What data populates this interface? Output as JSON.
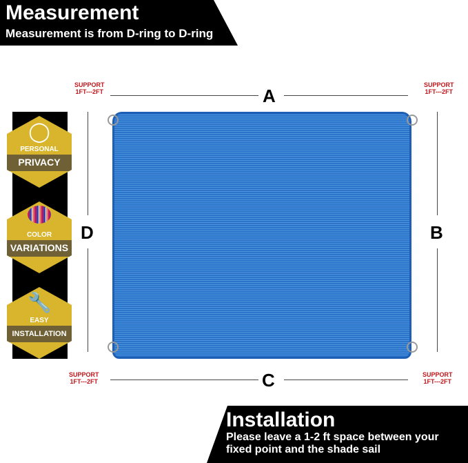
{
  "header": {
    "title": "Measurement",
    "subtitle": "Measurement is from D-ring to D-ring"
  },
  "footer": {
    "title": "Installation",
    "subtitle_line1": "Please leave a 1-2 ft space between your",
    "subtitle_line2": "fixed point and the shade sail"
  },
  "badges": [
    {
      "small": "PERSONAL",
      "big": "PRIVACY",
      "icon": "eye-slash-icon"
    },
    {
      "small": "COLOR",
      "big": "VARIATIONS",
      "icon": "color-stripes-icon"
    },
    {
      "small": "EASY",
      "big": "INSTALLATION",
      "icon": "wrench-hand-icon"
    }
  ],
  "dimensions": {
    "a": "A",
    "b": "B",
    "c": "C",
    "d": "D"
  },
  "support": {
    "line1": "SUPPORT",
    "line2": "1FT---2FT"
  },
  "colors": {
    "sail": "#2a74c9",
    "badge": "#d9b52e",
    "support_text": "#c0161b"
  }
}
